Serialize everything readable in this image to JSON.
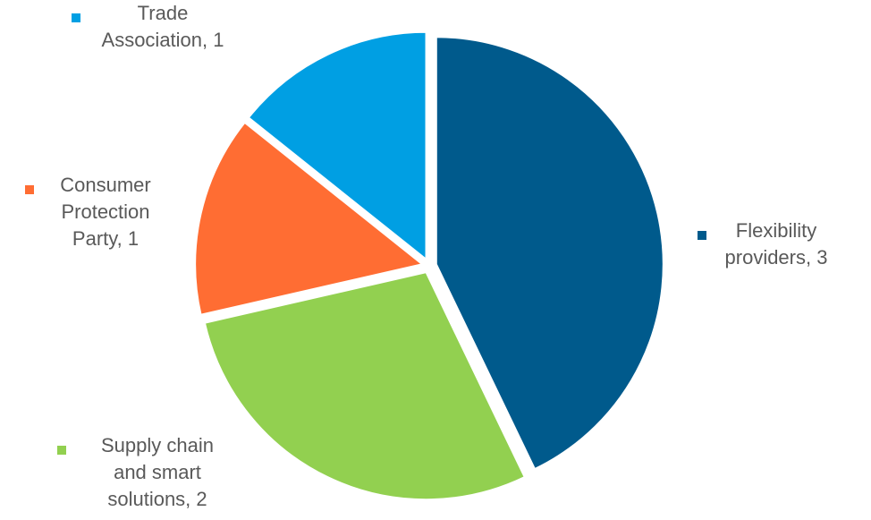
{
  "chart_data": {
    "type": "pie",
    "title": "",
    "slices": [
      {
        "name": "Flexibility providers",
        "value": 3,
        "color": "#005a8c",
        "label_lines": [
          "Flexibility",
          "providers, 3"
        ]
      },
      {
        "name": "Supply chain and smart solutions",
        "value": 2,
        "color": "#92d050",
        "label_lines": [
          "Supply chain",
          "and smart",
          "solutions, 2"
        ]
      },
      {
        "name": "Consumer Protection Party",
        "value": 1,
        "color": "#ff6d33",
        "label_lines": [
          "Consumer",
          "Protection",
          "Party, 1"
        ]
      },
      {
        "name": "Trade Association",
        "value": 1,
        "color": "#009fe3",
        "label_lines": [
          "Trade",
          "Association, 1"
        ]
      }
    ],
    "start_angle_deg": 0,
    "direction": "clockwise",
    "label_text_color": "#595959"
  }
}
